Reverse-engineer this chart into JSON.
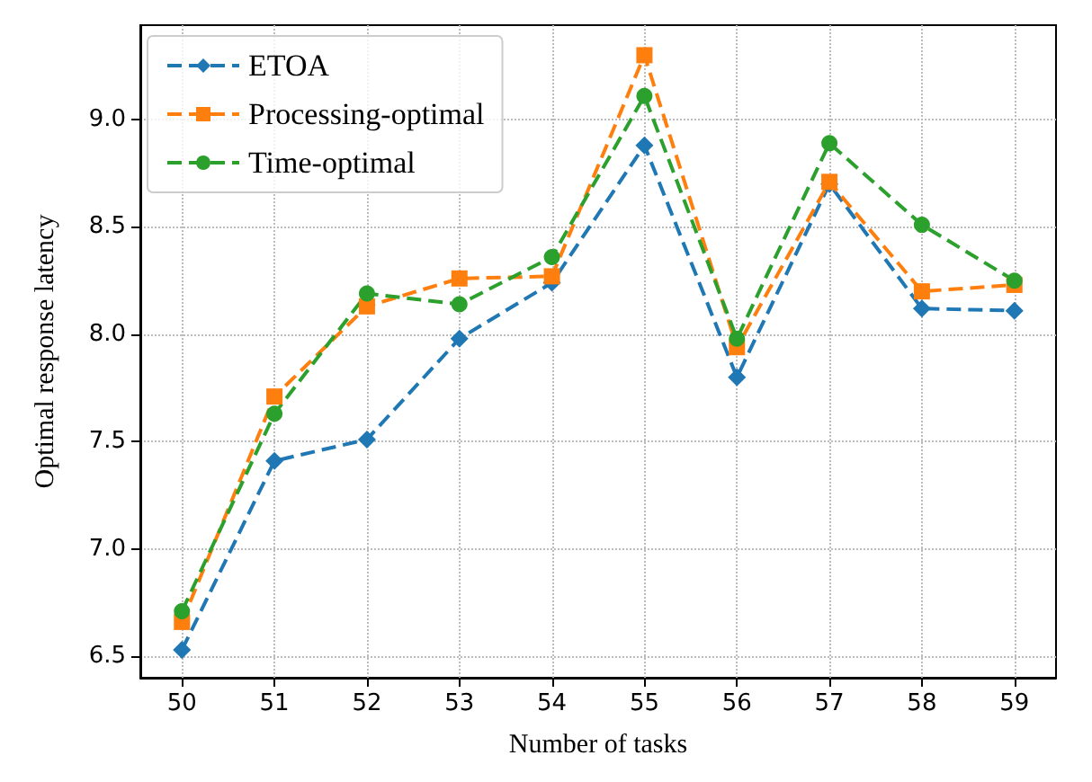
{
  "chart_data": {
    "type": "line",
    "xlabel": "Number of tasks",
    "ylabel": "Optimal response latency",
    "x": [
      50,
      51,
      52,
      53,
      54,
      55,
      56,
      57,
      58,
      59
    ],
    "xlim": [
      49.55,
      59.45
    ],
    "xticks": [
      50,
      51,
      52,
      53,
      54,
      55,
      56,
      57,
      58,
      59
    ],
    "ylim": [
      6.4,
      9.44
    ],
    "yticks": [
      6.5,
      {
        "value": 7,
        "label": "7.0"
      },
      7.5,
      {
        "value": 8,
        "label": "8.0"
      },
      8.5,
      {
        "value": 9,
        "label": "9.0"
      }
    ],
    "grid": true,
    "legend": "top left",
    "line_style": "dashed",
    "series": [
      {
        "name": "ETOA",
        "color": "#1f77b4",
        "marker": "diamond",
        "values": [
          6.53,
          7.41,
          7.51,
          7.98,
          8.24,
          8.88,
          7.8,
          8.7,
          8.12,
          8.11
        ]
      },
      {
        "name": "Processing-optimal",
        "color": "#ff7f0e",
        "marker": "square",
        "values": [
          6.66,
          7.71,
          8.13,
          8.26,
          8.27,
          9.3,
          7.94,
          8.71,
          8.2,
          8.23
        ]
      },
      {
        "name": "Time-optimal",
        "color": "#2ca02c",
        "marker": "circle",
        "values": [
          6.71,
          7.63,
          8.19,
          8.14,
          8.36,
          9.11,
          7.98,
          8.89,
          8.51,
          8.25
        ]
      }
    ]
  }
}
